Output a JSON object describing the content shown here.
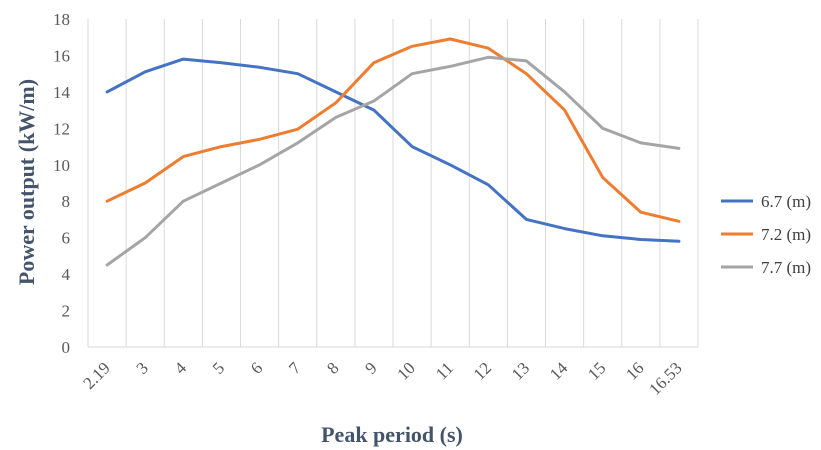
{
  "chart_data": {
    "type": "line",
    "title": "",
    "xlabel": "Peak period (s)",
    "ylabel": "Power output (kW/m)",
    "x": [
      "2.19",
      "3",
      "4",
      "5",
      "6",
      "7",
      "8",
      "9",
      "10",
      "11",
      "12",
      "13",
      "14",
      "15",
      "16",
      "16.53"
    ],
    "ylim": [
      0,
      18
    ],
    "yticks": [
      "0",
      "2",
      "4",
      "6",
      "8",
      "10",
      "12",
      "14",
      "16",
      "18"
    ],
    "grid": "vertical",
    "legend_position": "right",
    "series": [
      {
        "name": "6.7 (m)",
        "color": "#4472c4",
        "values": [
          14.0,
          15.1,
          15.8,
          15.6,
          15.35,
          15.0,
          14.0,
          13.0,
          11.0,
          10.0,
          8.9,
          7.0,
          6.5,
          6.1,
          5.9,
          5.8
        ]
      },
      {
        "name": "7.2 (m)",
        "color": "#ed7d31",
        "values": [
          8.0,
          9.0,
          10.45,
          11.0,
          11.4,
          11.95,
          13.4,
          15.6,
          16.5,
          16.9,
          16.4,
          15.0,
          13.0,
          9.3,
          7.4,
          6.9
        ]
      },
      {
        "name": "7.7 (m)",
        "color": "#a5a5a5",
        "values": [
          4.5,
          6.0,
          8.0,
          9.0,
          10.0,
          11.2,
          12.6,
          13.5,
          15.0,
          15.4,
          15.9,
          15.7,
          14.0,
          12.0,
          11.2,
          10.9
        ]
      }
    ]
  }
}
